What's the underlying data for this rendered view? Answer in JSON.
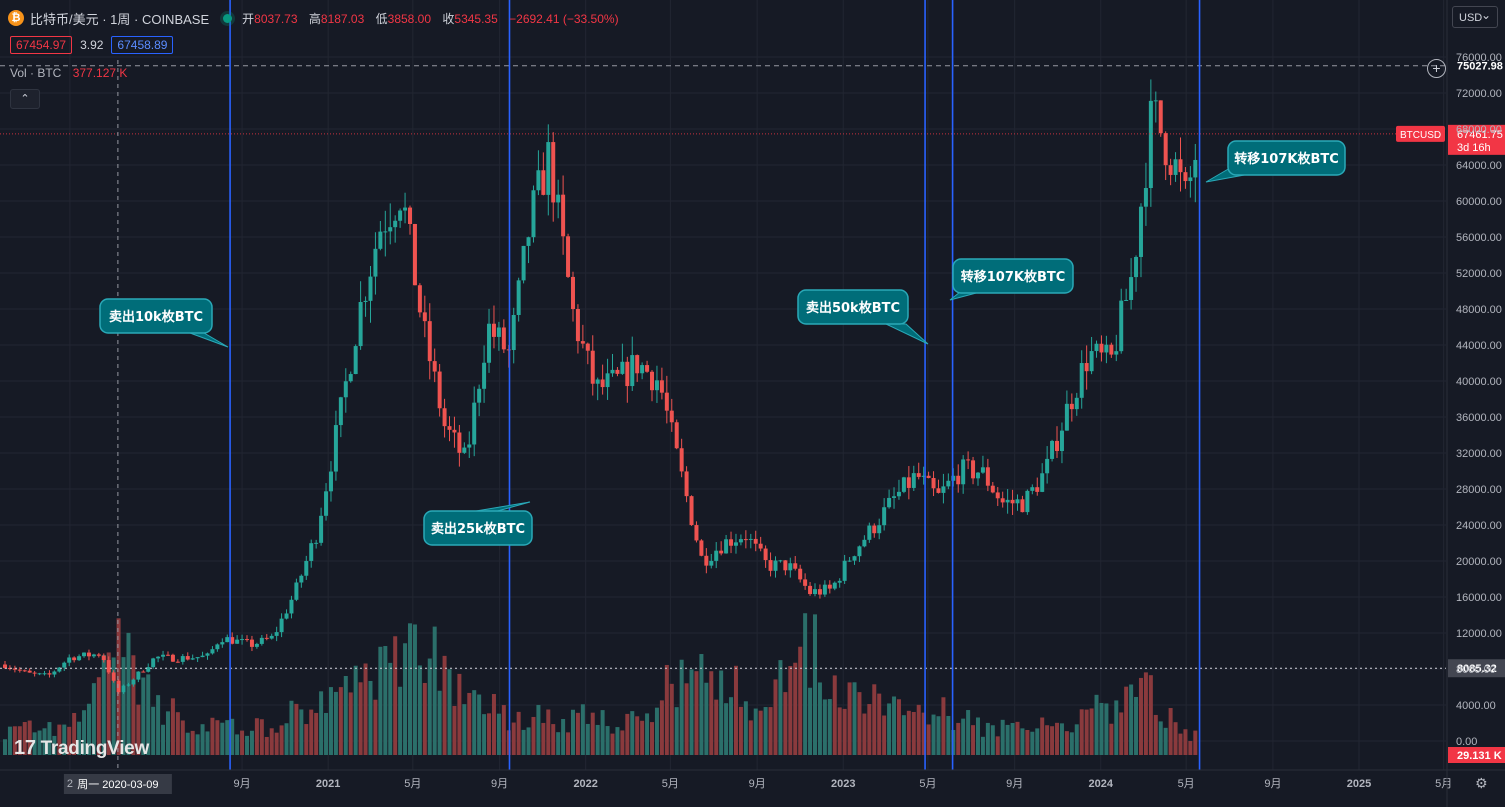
{
  "header": {
    "coin_glyph": "₿",
    "symbol": "比特币/美元 · 1周 · COINBASE",
    "open_label": "开",
    "open": "8037.73",
    "high_label": "高",
    "high": "8187.03",
    "low_label": "低",
    "low": "3858.00",
    "close_label": "收",
    "close": "5345.35",
    "change": "−2692.41 (−33.50%)"
  },
  "quote": {
    "bid": "67454.97",
    "spread": "3.92",
    "ask": "67458.89"
  },
  "volume": {
    "label": "Vol · BTC",
    "value": "377.127 K"
  },
  "collapse_glyph": "⌃",
  "currency": "USD",
  "logo": {
    "mark": "17",
    "text": "TradingView"
  },
  "icons": {
    "add": "plus-circle-icon",
    "settings": "gear-icon",
    "coin": "bitcoin-icon"
  },
  "colors": {
    "background": "#161a25",
    "grid": "#222632",
    "up": "#26a69a",
    "down": "#ef5350",
    "vline": "#2962ff",
    "callout": "#006d79",
    "callout_border": "#2aa9b8",
    "price_tag": "#f23645",
    "text": "#d1d4dc"
  },
  "chart_data": {
    "type": "candlestick",
    "symbol": "BTCUSD",
    "interval": "1周",
    "y_axis": {
      "ticks": [
        0,
        4000,
        8000,
        12000,
        16000,
        20000,
        24000,
        28000,
        32000,
        36000,
        40000,
        44000,
        48000,
        52000,
        56000,
        60000,
        64000,
        68000,
        72000,
        76000
      ],
      "tick_labels": [
        "0.00",
        "4000.00",
        "8000.00",
        "12000.00",
        "16000.00",
        "20000.00",
        "24000.00",
        "28000.00",
        "32000.00",
        "36000.00",
        "40000.00",
        "44000.00",
        "48000.00",
        "52000.00",
        "56000.00",
        "60000.00",
        "64000.00",
        "68000.00",
        "72000.00",
        "76000.00"
      ],
      "range": [
        0,
        77000
      ]
    },
    "x_axis": {
      "range": [
        "2019-09-30",
        "2025-06-30"
      ],
      "ticks": [
        {
          "date": "2020-01-01",
          "label": "2"
        },
        {
          "date": "2020-09-01",
          "label": "9月"
        },
        {
          "date": "2021-01-01",
          "label": "2021"
        },
        {
          "date": "2021-05-01",
          "label": "5月"
        },
        {
          "date": "2021-09-01",
          "label": "9月"
        },
        {
          "date": "2022-01-01",
          "label": "2022"
        },
        {
          "date": "2022-05-01",
          "label": "5月"
        },
        {
          "date": "2022-09-01",
          "label": "9月"
        },
        {
          "date": "2023-01-01",
          "label": "2023"
        },
        {
          "date": "2023-05-01",
          "label": "5月"
        },
        {
          "date": "2023-09-01",
          "label": "9月"
        },
        {
          "date": "2024-01-01",
          "label": "2024"
        },
        {
          "date": "2024-05-01",
          "label": "5月"
        },
        {
          "date": "2024-09-01",
          "label": "9月"
        },
        {
          "date": "2025-01-01",
          "label": "2025"
        },
        {
          "date": "2025-05-01",
          "label": "5月"
        }
      ]
    },
    "series": [
      {
        "date": "2019-10-01",
        "close": 8500
      },
      {
        "date": "2019-11-01",
        "close": 7500
      },
      {
        "date": "2019-12-01",
        "close": 7200
      },
      {
        "date": "2020-01-01",
        "close": 9300
      },
      {
        "date": "2020-02-15",
        "close": 9700
      },
      {
        "date": "2020-03-09",
        "close": 5345
      },
      {
        "date": "2020-04-01",
        "close": 7000
      },
      {
        "date": "2020-05-01",
        "close": 9300
      },
      {
        "date": "2020-06-01",
        "close": 9200
      },
      {
        "date": "2020-07-15",
        "close": 9400
      },
      {
        "date": "2020-08-01",
        "close": 11500
      },
      {
        "date": "2020-09-15",
        "close": 10700
      },
      {
        "date": "2020-10-15",
        "close": 11500
      },
      {
        "date": "2020-11-15",
        "close": 16500
      },
      {
        "date": "2020-12-15",
        "close": 23000
      },
      {
        "date": "2021-01-15",
        "close": 35000
      },
      {
        "date": "2021-02-15",
        "close": 48000
      },
      {
        "date": "2021-03-15",
        "close": 57000
      },
      {
        "date": "2021-04-15",
        "close": 61000
      },
      {
        "date": "2021-05-15",
        "close": 46000
      },
      {
        "date": "2021-06-15",
        "close": 35000
      },
      {
        "date": "2021-07-15",
        "close": 31000
      },
      {
        "date": "2021-08-15",
        "close": 46000
      },
      {
        "date": "2021-09-15",
        "close": 43000
      },
      {
        "date": "2021-10-15",
        "close": 58000
      },
      {
        "date": "2021-11-10",
        "close": 65000
      },
      {
        "date": "2021-12-15",
        "close": 47000
      },
      {
        "date": "2022-01-15",
        "close": 39000
      },
      {
        "date": "2022-02-15",
        "close": 40000
      },
      {
        "date": "2022-03-15",
        "close": 42000
      },
      {
        "date": "2022-04-15",
        "close": 40000
      },
      {
        "date": "2022-05-15",
        "close": 30000
      },
      {
        "date": "2022-06-15",
        "close": 20000
      },
      {
        "date": "2022-07-15",
        "close": 22000
      },
      {
        "date": "2022-08-15",
        "close": 23000
      },
      {
        "date": "2022-09-15",
        "close": 19500
      },
      {
        "date": "2022-10-15",
        "close": 19500
      },
      {
        "date": "2022-11-15",
        "close": 16500
      },
      {
        "date": "2022-12-15",
        "close": 16800
      },
      {
        "date": "2023-01-15",
        "close": 21000
      },
      {
        "date": "2023-02-15",
        "close": 24000
      },
      {
        "date": "2023-03-15",
        "close": 27000
      },
      {
        "date": "2023-04-15",
        "close": 29500
      },
      {
        "date": "2023-05-15",
        "close": 27000
      },
      {
        "date": "2023-06-15",
        "close": 30000
      },
      {
        "date": "2023-07-15",
        "close": 30000
      },
      {
        "date": "2023-08-15",
        "close": 26500
      },
      {
        "date": "2023-09-15",
        "close": 26500
      },
      {
        "date": "2023-10-15",
        "close": 30000
      },
      {
        "date": "2023-11-15",
        "close": 37000
      },
      {
        "date": "2023-12-15",
        "close": 43000
      },
      {
        "date": "2024-01-15",
        "close": 42000
      },
      {
        "date": "2024-02-15",
        "close": 52000
      },
      {
        "date": "2024-03-14",
        "close": 70000
      },
      {
        "date": "2024-04-15",
        "close": 64000
      },
      {
        "date": "2024-05-01",
        "close": 60000
      },
      {
        "date": "2024-05-20",
        "close": 67461
      }
    ],
    "volume": {
      "series": [
        {
          "date": "2019-10-01",
          "value": 3500
        },
        {
          "date": "2020-01-01",
          "value": 3000
        },
        {
          "date": "2020-03-09",
          "value": 15000
        },
        {
          "date": "2020-04-15",
          "value": 8000
        },
        {
          "date": "2020-07-01",
          "value": 4000
        },
        {
          "date": "2020-10-01",
          "value": 3500
        },
        {
          "date": "2021-01-15",
          "value": 9000
        },
        {
          "date": "2021-03-01",
          "value": 11500
        },
        {
          "date": "2021-05-15",
          "value": 15000
        },
        {
          "date": "2021-07-01",
          "value": 8000
        },
        {
          "date": "2021-09-15",
          "value": 5000
        },
        {
          "date": "2021-12-01",
          "value": 5000
        },
        {
          "date": "2022-03-01",
          "value": 4500
        },
        {
          "date": "2022-06-15",
          "value": 12500
        },
        {
          "date": "2022-09-01",
          "value": 6500
        },
        {
          "date": "2022-11-10",
          "value": 15000
        },
        {
          "date": "2023-01-15",
          "value": 7000
        },
        {
          "date": "2023-03-15",
          "value": 9000
        },
        {
          "date": "2023-06-15",
          "value": 4500
        },
        {
          "date": "2023-09-15",
          "value": 3000
        },
        {
          "date": "2023-12-01",
          "value": 5000
        },
        {
          "date": "2024-03-01",
          "value": 8500
        },
        {
          "date": "2024-05-20",
          "value": 2000
        }
      ],
      "current_label": "29.131 K"
    },
    "price_lines": [
      {
        "label": "75027.98",
        "value": 75027.98,
        "style": "dashed"
      },
      {
        "label": "8085.32",
        "value": 8085.32,
        "style": "dotted"
      }
    ],
    "current_price": {
      "value": 67461.75,
      "label": "67461.75",
      "countdown": "3d 16h",
      "tag": "BTCUSD"
    },
    "crosshair": {
      "date": "2020-03-09",
      "label": "周一  2020-03-09"
    },
    "vertical_lines": [
      "2020-08-15",
      "2021-09-15",
      "2023-04-27",
      "2023-06-05",
      "2024-05-20"
    ],
    "annotations": [
      {
        "text": "卖出10k枚BTC",
        "date": "2020-08-15",
        "value": 46000
      },
      {
        "text": "卖出25k枚BTC",
        "date": "2021-09-15",
        "value": 27500
      },
      {
        "text": "卖出50k枚BTC",
        "date": "2023-04-27",
        "value": 44500
      },
      {
        "text": "转移107K枚BTC",
        "date": "2023-06-05",
        "value": 49000
      },
      {
        "text": "转移107K枚BTC",
        "date": "2024-05-20",
        "value": 62500
      }
    ]
  }
}
